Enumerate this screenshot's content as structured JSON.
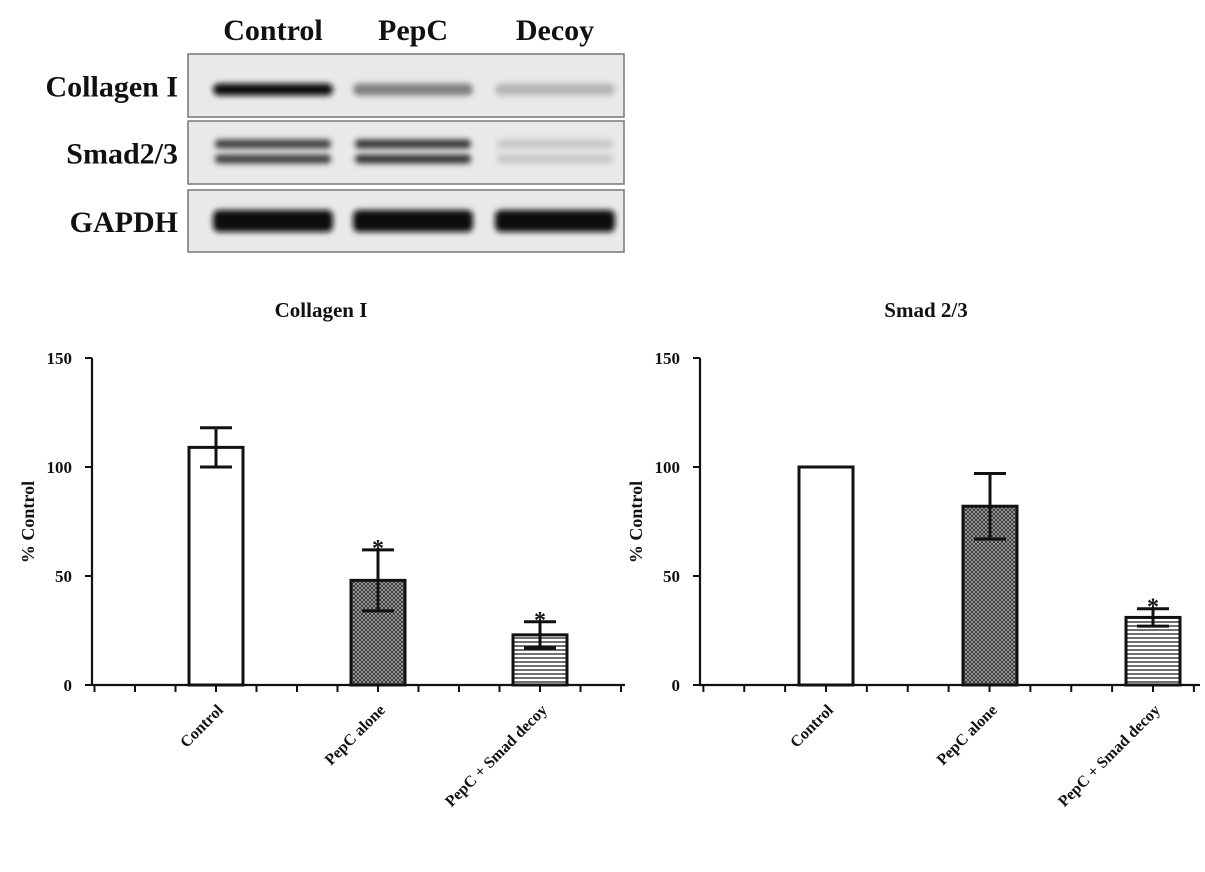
{
  "blot": {
    "lanes": [
      "Control",
      "PepC",
      "Decoy"
    ],
    "rows": [
      {
        "label": "Collagen I",
        "intensity": [
          1.0,
          0.45,
          0.2
        ]
      },
      {
        "label": "Smad2/3",
        "intensity": [
          0.75,
          0.8,
          0.12
        ]
      },
      {
        "label": "GAPDH",
        "intensity": [
          1.0,
          1.0,
          1.0
        ]
      }
    ]
  },
  "chart_data": [
    {
      "type": "bar",
      "title": "Collagen I",
      "ylabel": "% Control",
      "xlabel": "",
      "ylim": [
        0,
        150
      ],
      "yticks": [
        0,
        50,
        100,
        150
      ],
      "categories": [
        "Control",
        "PepC alone",
        "PepC + Smad decoy"
      ],
      "values": [
        109,
        48,
        23
      ],
      "errors": [
        9,
        14,
        6
      ],
      "significance": [
        "",
        "*",
        "*"
      ],
      "fills": [
        "none",
        "crosshatch",
        "horizontal-lines"
      ]
    },
    {
      "type": "bar",
      "title": "Smad 2/3",
      "ylabel": "% Control",
      "xlabel": "",
      "ylim": [
        0,
        150
      ],
      "yticks": [
        0,
        50,
        100,
        150
      ],
      "categories": [
        "Control",
        "PepC alone",
        "PepC + Smad decoy"
      ],
      "values": [
        100,
        82,
        31
      ],
      "errors": [
        0,
        15,
        4
      ],
      "significance": [
        "",
        "",
        "*"
      ],
      "fills": [
        "none",
        "crosshatch",
        "horizontal-lines"
      ]
    }
  ]
}
